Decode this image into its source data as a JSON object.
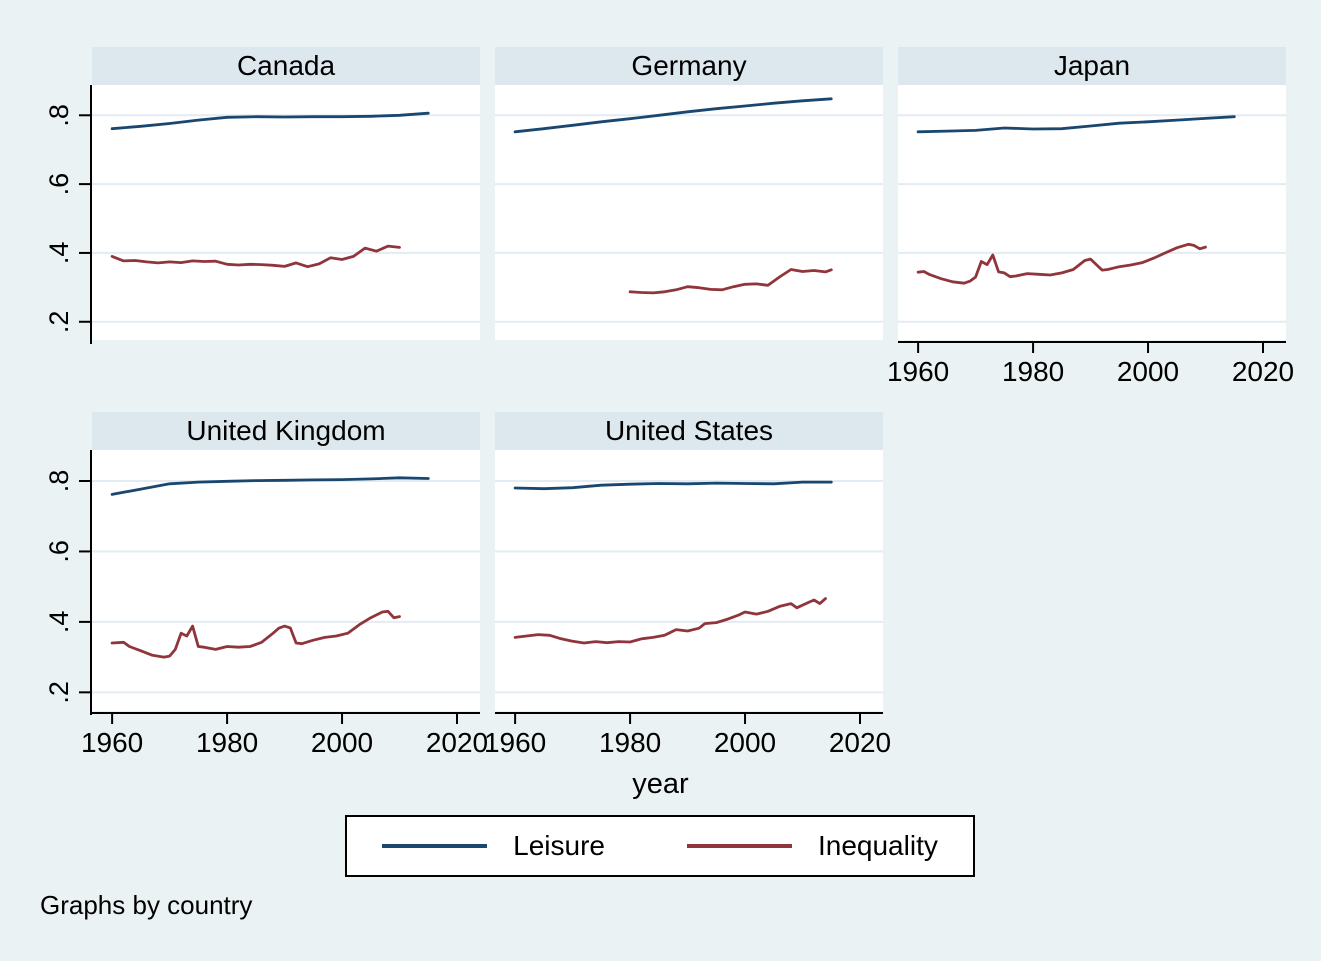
{
  "colors": {
    "background": "#eaf2f3",
    "header_strip": "#dce7ee",
    "plot_background": "#ffffff",
    "gridline": "#e3ecf2",
    "axis": "#000000",
    "leisure_line": "#1a476f",
    "inequality_line": "#90353b"
  },
  "chart_data": {
    "type": "line",
    "layout": "small multiples by country, 2 rows x 3 columns, shared axes",
    "xlabel": "year",
    "caption": "Graphs by country",
    "grid": true,
    "legend_position": "bottom",
    "xlim": [
      1956.5,
      2024
    ],
    "ylim": [
      0.147,
      0.888
    ],
    "x_ticks": [
      1960,
      1980,
      2000,
      2020
    ],
    "x_tick_labels": [
      "1960",
      "1980",
      "2000",
      "2020"
    ],
    "y_ticks": [
      0.2,
      0.4,
      0.6,
      0.8
    ],
    "y_tick_labels": [
      ".2",
      ".4",
      ".6",
      ".8"
    ],
    "legend": [
      {
        "label": "Leisure",
        "color": "#1a476f"
      },
      {
        "label": "Inequality",
        "color": "#90353b"
      }
    ],
    "panels": [
      {
        "title": "Canada",
        "series": [
          {
            "name": "Leisure",
            "years": [
              1960,
              1965,
              1970,
              1975,
              1980,
              1985,
              1990,
              1995,
              2000,
              2005,
              2010,
              2015
            ],
            "values": [
              0.761,
              0.768,
              0.776,
              0.786,
              0.794,
              0.796,
              0.795,
              0.796,
              0.796,
              0.797,
              0.8,
              0.806
            ]
          },
          {
            "name": "Inequality",
            "years": [
              1960,
              1962,
              1964,
              1966,
              1968,
              1970,
              1972,
              1974,
              1976,
              1978,
              1980,
              1982,
              1984,
              1986,
              1988,
              1990,
              1992,
              1994,
              1996,
              1998,
              2000,
              2002,
              2004,
              2006,
              2008,
              2010
            ],
            "values": [
              0.39,
              0.377,
              0.378,
              0.374,
              0.371,
              0.374,
              0.372,
              0.377,
              0.375,
              0.376,
              0.367,
              0.365,
              0.367,
              0.366,
              0.364,
              0.361,
              0.371,
              0.36,
              0.368,
              0.386,
              0.381,
              0.39,
              0.414,
              0.405,
              0.42,
              0.416
            ]
          }
        ]
      },
      {
        "title": "Germany",
        "series": [
          {
            "name": "Leisure",
            "years": [
              1960,
              1965,
              1970,
              1975,
              1980,
              1985,
              1990,
              1995,
              2000,
              2005,
              2010,
              2015
            ],
            "values": [
              0.752,
              0.761,
              0.771,
              0.781,
              0.79,
              0.8,
              0.81,
              0.819,
              0.827,
              0.835,
              0.842,
              0.848
            ]
          },
          {
            "name": "Inequality",
            "years": [
              1980,
              1982,
              1984,
              1986,
              1988,
              1990,
              1992,
              1994,
              1996,
              1998,
              2000,
              2002,
              2004,
              2006,
              2008,
              2010,
              2012,
              2014,
              2015
            ],
            "values": [
              0.287,
              0.285,
              0.284,
              0.287,
              0.293,
              0.302,
              0.299,
              0.294,
              0.293,
              0.302,
              0.309,
              0.31,
              0.306,
              0.33,
              0.352,
              0.346,
              0.349,
              0.345,
              0.351
            ]
          }
        ]
      },
      {
        "title": "Japan",
        "series": [
          {
            "name": "Leisure",
            "years": [
              1960,
              1965,
              1970,
              1975,
              1980,
              1985,
              1990,
              1995,
              2000,
              2005,
              2010,
              2015
            ],
            "values": [
              0.752,
              0.754,
              0.756,
              0.763,
              0.76,
              0.761,
              0.769,
              0.777,
              0.781,
              0.786,
              0.791,
              0.796
            ]
          },
          {
            "name": "Inequality",
            "years": [
              1960,
              1961,
              1962,
              1964,
              1966,
              1968,
              1969,
              1970,
              1971,
              1972,
              1973,
              1974,
              1975,
              1976,
              1977,
              1979,
              1981,
              1983,
              1985,
              1987,
              1989,
              1990,
              1992,
              1993,
              1995,
              1997,
              1999,
              2001,
              2003,
              2005,
              2007,
              2008,
              2009,
              2010
            ],
            "values": [
              0.344,
              0.346,
              0.337,
              0.325,
              0.316,
              0.312,
              0.318,
              0.33,
              0.375,
              0.366,
              0.394,
              0.345,
              0.342,
              0.331,
              0.333,
              0.34,
              0.338,
              0.336,
              0.342,
              0.352,
              0.378,
              0.382,
              0.35,
              0.352,
              0.36,
              0.365,
              0.372,
              0.385,
              0.4,
              0.415,
              0.425,
              0.422,
              0.412,
              0.417
            ]
          }
        ]
      },
      {
        "title": "United Kingdom",
        "series": [
          {
            "name": "Leisure",
            "years": [
              1960,
              1965,
              1970,
              1975,
              1980,
              1985,
              1990,
              1995,
              2000,
              2005,
              2010,
              2015
            ],
            "values": [
              0.762,
              0.777,
              0.792,
              0.797,
              0.799,
              0.801,
              0.802,
              0.803,
              0.804,
              0.806,
              0.809,
              0.807
            ]
          },
          {
            "name": "Inequality",
            "years": [
              1960,
              1962,
              1963,
              1965,
              1967,
              1969,
              1970,
              1971,
              1972,
              1973,
              1974,
              1975,
              1976,
              1978,
              1980,
              1982,
              1984,
              1986,
              1988,
              1989,
              1990,
              1991,
              1992,
              1993,
              1995,
              1997,
              1999,
              2001,
              2003,
              2005,
              2007,
              2008,
              2009,
              2010
            ],
            "values": [
              0.34,
              0.342,
              0.33,
              0.318,
              0.305,
              0.3,
              0.303,
              0.322,
              0.368,
              0.36,
              0.388,
              0.33,
              0.328,
              0.322,
              0.33,
              0.328,
              0.33,
              0.342,
              0.368,
              0.382,
              0.388,
              0.383,
              0.34,
              0.338,
              0.348,
              0.356,
              0.36,
              0.368,
              0.392,
              0.412,
              0.428,
              0.43,
              0.412,
              0.415
            ]
          }
        ]
      },
      {
        "title": "United States",
        "series": [
          {
            "name": "Leisure",
            "years": [
              1960,
              1965,
              1970,
              1975,
              1980,
              1985,
              1990,
              1995,
              2000,
              2005,
              2010,
              2015
            ],
            "values": [
              0.78,
              0.778,
              0.781,
              0.788,
              0.791,
              0.793,
              0.792,
              0.794,
              0.793,
              0.792,
              0.797,
              0.797
            ]
          },
          {
            "name": "Inequality",
            "years": [
              1960,
              1962,
              1964,
              1966,
              1968,
              1970,
              1972,
              1974,
              1976,
              1978,
              1980,
              1982,
              1984,
              1986,
              1988,
              1990,
              1992,
              1993,
              1995,
              1997,
              1999,
              2000,
              2002,
              2004,
              2006,
              2008,
              2009,
              2011,
              2012,
              2013,
              2014
            ],
            "values": [
              0.356,
              0.36,
              0.364,
              0.362,
              0.352,
              0.345,
              0.34,
              0.344,
              0.341,
              0.344,
              0.343,
              0.352,
              0.356,
              0.362,
              0.378,
              0.374,
              0.382,
              0.395,
              0.398,
              0.408,
              0.42,
              0.428,
              0.422,
              0.43,
              0.444,
              0.452,
              0.44,
              0.455,
              0.462,
              0.452,
              0.466
            ]
          }
        ]
      }
    ]
  }
}
